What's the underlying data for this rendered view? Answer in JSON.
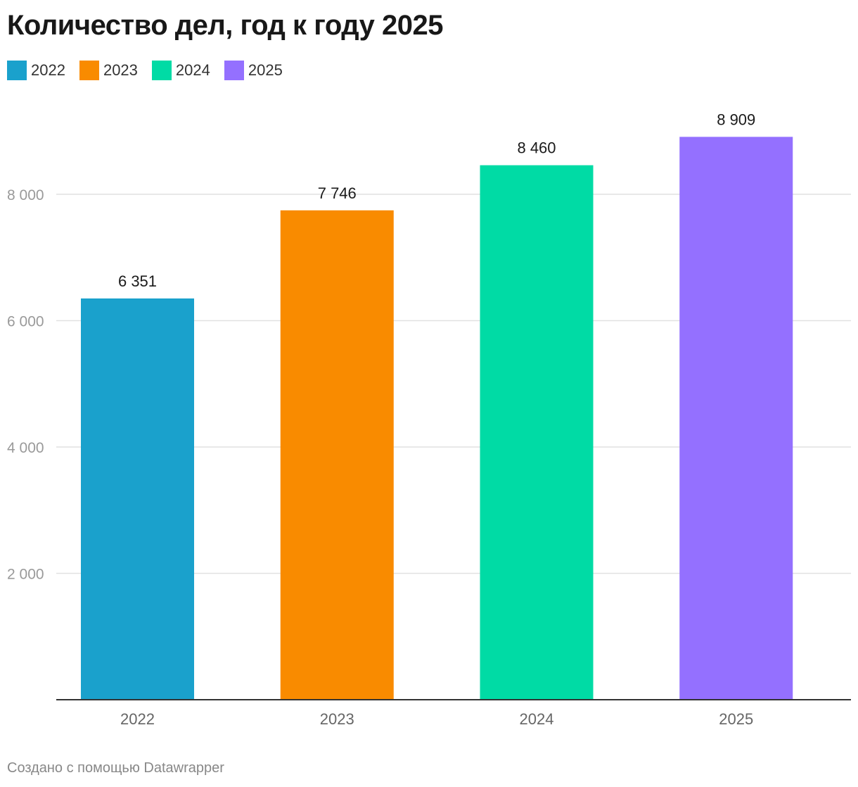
{
  "title": "Количество дел, год к году 2025",
  "legend": [
    {
      "label": "2022",
      "color": "#1aa1cc"
    },
    {
      "label": "2023",
      "color": "#f98b00"
    },
    {
      "label": "2024",
      "color": "#00dba5"
    },
    {
      "label": "2025",
      "color": "#9470ff"
    }
  ],
  "footer": "Создано с помощью Datawrapper",
  "chart_data": {
    "type": "bar",
    "title": "Количество дел, год к году 2025",
    "categories": [
      "2022",
      "2023",
      "2024",
      "2025"
    ],
    "values": [
      6351,
      7746,
      8460,
      8909
    ],
    "value_labels": [
      "6 351",
      "7 746",
      "8 460",
      "8 909"
    ],
    "colors": [
      "#1aa1cc",
      "#f98b00",
      "#00dba5",
      "#9470ff"
    ],
    "yticks": [
      2000,
      4000,
      6000,
      8000
    ],
    "ytick_labels": [
      "2 000",
      "4 000",
      "6 000",
      "8 000"
    ],
    "ylim": [
      0,
      10000
    ],
    "xlabel": "",
    "ylabel": "",
    "grid": true
  }
}
